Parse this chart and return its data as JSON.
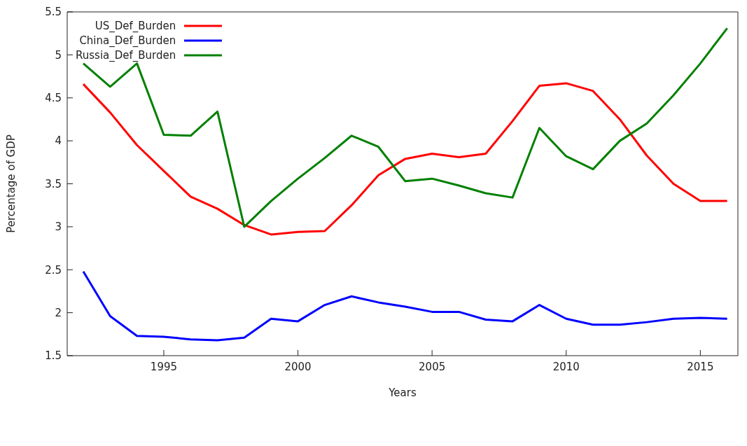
{
  "chart_data": {
    "type": "line",
    "xlabel": "Years",
    "ylabel": "Percentage of GDP",
    "x": [
      1992,
      1993,
      1994,
      1995,
      1996,
      1997,
      1998,
      1999,
      2000,
      2001,
      2002,
      2003,
      2004,
      2005,
      2006,
      2007,
      2008,
      2009,
      2010,
      2011,
      2012,
      2013,
      2014,
      2015,
      2016
    ],
    "series": [
      {
        "name": "US_Def_Burden",
        "color": "#ff0000",
        "values": [
          4.66,
          4.33,
          3.95,
          3.65,
          3.35,
          3.21,
          3.02,
          2.91,
          2.94,
          2.95,
          3.25,
          3.6,
          3.79,
          3.85,
          3.81,
          3.85,
          4.23,
          4.64,
          4.67,
          4.58,
          4.25,
          3.83,
          3.5,
          3.3,
          3.3
        ]
      },
      {
        "name": "China_Def_Burden",
        "color": "#0000ff",
        "values": [
          2.48,
          1.96,
          1.73,
          1.72,
          1.69,
          1.68,
          1.71,
          1.93,
          1.9,
          2.09,
          2.19,
          2.12,
          2.07,
          2.01,
          2.01,
          1.92,
          1.9,
          2.09,
          1.93,
          1.86,
          1.86,
          1.89,
          1.93,
          1.94,
          1.93
        ]
      },
      {
        "name": "Russia_Def_Burden",
        "color": "#008000",
        "values": [
          4.9,
          4.63,
          4.9,
          4.07,
          4.06,
          4.34,
          3.0,
          3.3,
          3.56,
          3.8,
          4.06,
          3.93,
          3.53,
          3.56,
          3.48,
          3.39,
          3.34,
          4.15,
          3.82,
          3.67,
          4.0,
          4.2,
          4.53,
          4.9,
          5.31
        ]
      }
    ],
    "xlim": [
      1991.4,
      2016.4
    ],
    "xticks": [
      1995,
      2000,
      2005,
      2010,
      2015
    ],
    "ylim": [
      1.5,
      5.5
    ],
    "yticks": [
      1.5,
      2,
      2.5,
      3,
      3.5,
      4,
      4.5,
      5,
      5.5
    ],
    "legend": "top left",
    "marker": "none",
    "line_style": "solid",
    "grid": false
  }
}
